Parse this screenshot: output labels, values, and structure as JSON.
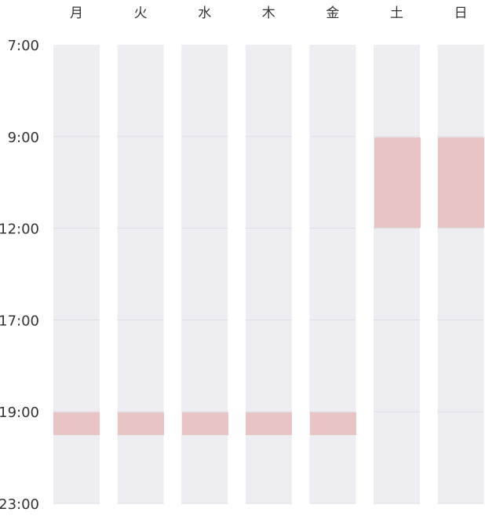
{
  "days": [
    "月",
    "火",
    "水",
    "木",
    "金",
    "土",
    "日"
  ],
  "times": [
    "7:00",
    "9:00",
    "12:00",
    "17:00",
    "19:00",
    "23:00"
  ]
}
